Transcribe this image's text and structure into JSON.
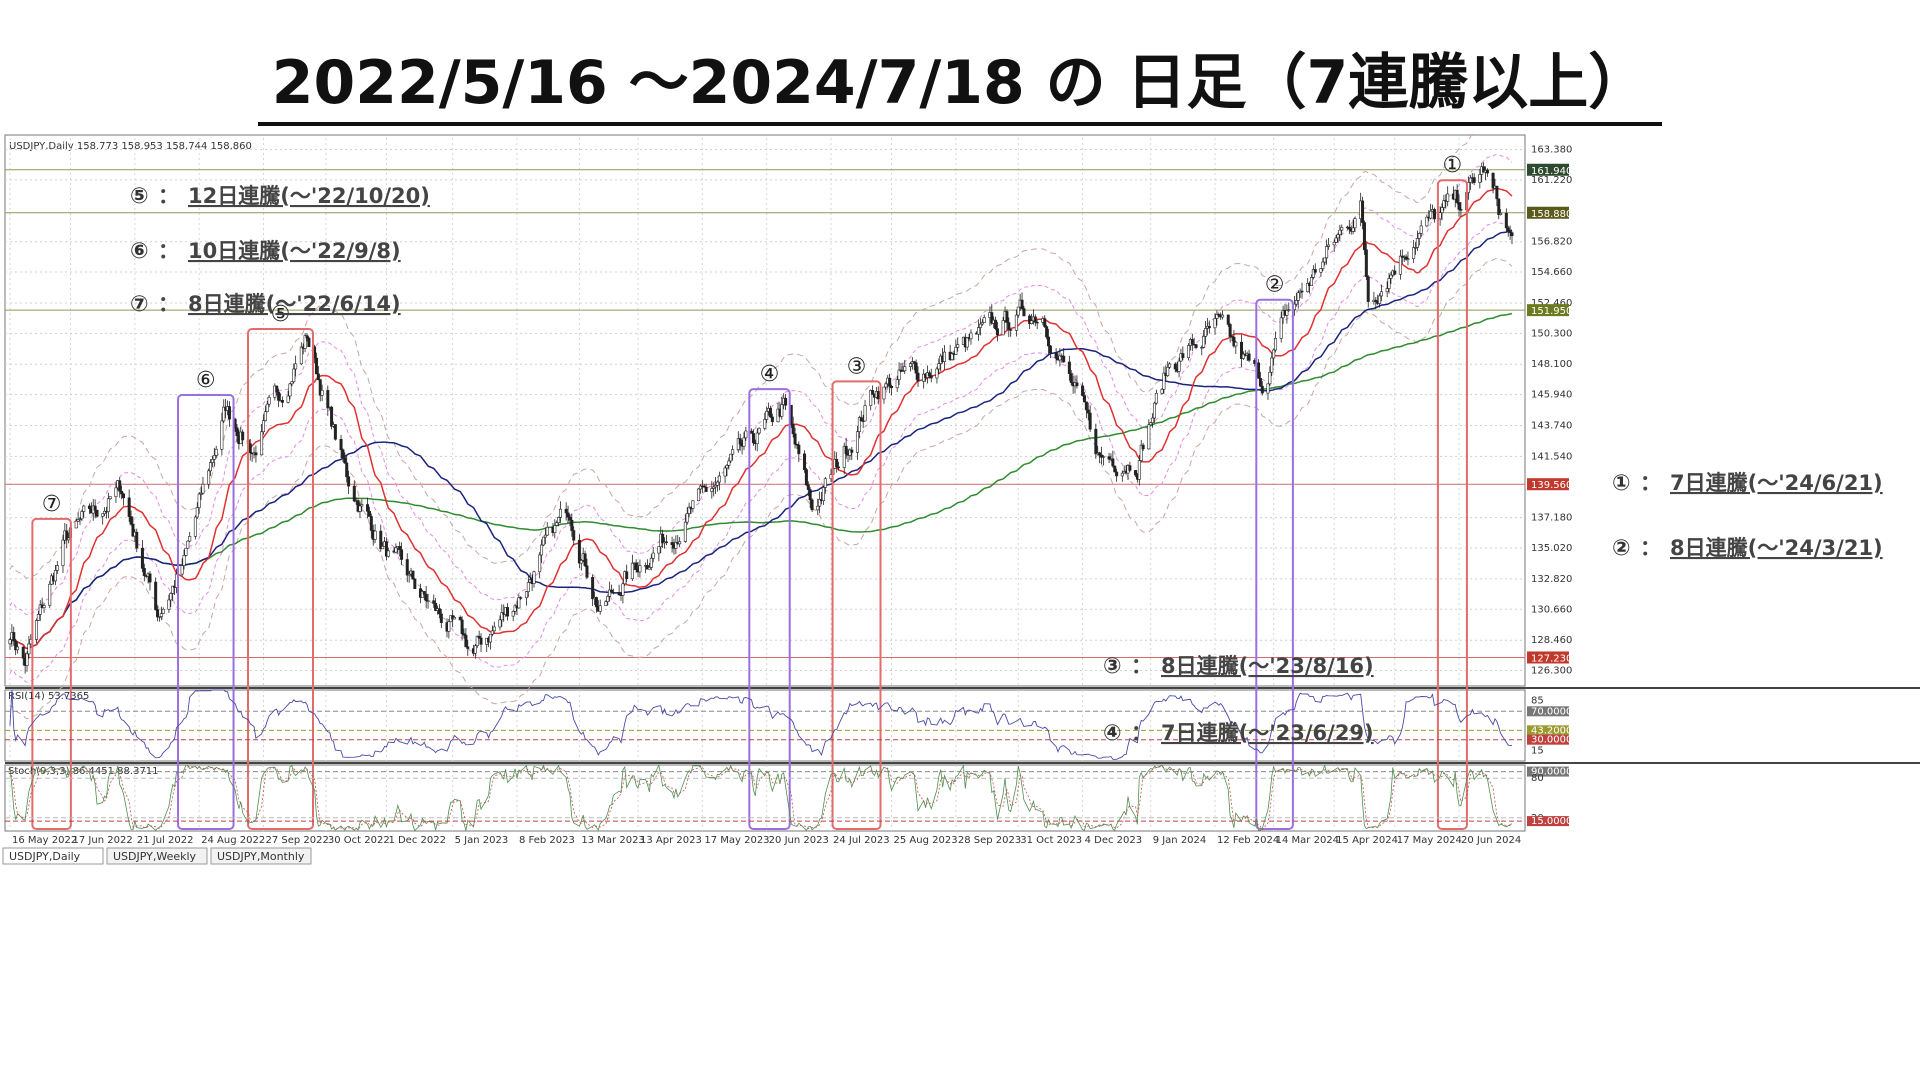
{
  "title": "2022/5/16 ～2024/7/18 の 日足（7連騰以上）",
  "chart_data": {
    "type": "candlestick",
    "symbol_header": "USDJPY,Daily  158.773 158.953 158.744 158.860",
    "ylim": [
      125.2,
      164.2
    ],
    "y_ticks": [
      "163.380",
      "161.220",
      "156.820",
      "154.660",
      "152.460",
      "150.300",
      "148.100",
      "145.940",
      "143.740",
      "141.540",
      "137.180",
      "135.020",
      "132.820",
      "130.660",
      "128.460",
      "126.300"
    ],
    "price_tags": [
      {
        "label": "161.940",
        "value": 161.94,
        "color": "#2e4a2e"
      },
      {
        "label": "158.880",
        "value": 158.88,
        "color": "#5a5a1a"
      },
      {
        "label": "151.950",
        "value": 151.95,
        "color": "#6b7a1f"
      },
      {
        "label": "139.560",
        "value": 139.56,
        "color": "#c0392b"
      },
      {
        "label": "127.230",
        "value": 127.23,
        "color": "#c0392b"
      }
    ],
    "x_ticks": [
      "16 May 2022",
      "17 Jun 2022",
      "21 Jul 2022",
      "24 Aug 2022",
      "27 Sep 2022",
      "30 Oct 2022",
      "1 Dec 2022",
      "5 Jan 2023",
      "8 Feb 2023",
      "13 Mar 2023",
      "13 Apr 2023",
      "17 May 2023",
      "20 Jun 2023",
      "24 Jul 2023",
      "25 Aug 2023",
      "28 Sep 2023",
      "31 Oct 2023",
      "4 Dec 2023",
      "9 Jan 2024",
      "12 Feb 2024",
      "14 Mar 2024",
      "15 Apr 2024",
      "17 May 2024",
      "20 Jun 2024"
    ],
    "price_path": [
      [
        "16 May 2022",
        129.2
      ],
      [
        "2022-05-24",
        126.9
      ],
      [
        "2022-06-14",
        135.4
      ],
      [
        "2022-06-22",
        136.5
      ],
      [
        "2022-07-14",
        139.2
      ],
      [
        "2022-08-02",
        130.4
      ],
      [
        "2022-08-16",
        133.9
      ],
      [
        "2022-09-07",
        144.9
      ],
      [
        "2022-09-22",
        142.0
      ],
      [
        "2022-10-20",
        150.1
      ],
      [
        "2022-11-10",
        140.0
      ],
      [
        "2022-12-02",
        134.5
      ],
      [
        "2022-12-20",
        131.5
      ],
      [
        "2023-01-16",
        127.5
      ],
      [
        "2023-02-08",
        131.4
      ],
      [
        "2023-03-08",
        137.9
      ],
      [
        "2023-03-24",
        130.6
      ],
      [
        "2023-04-13",
        133.9
      ],
      [
        "2023-05-18",
        138.5
      ],
      [
        "2023-06-29",
        145.0
      ],
      [
        "2023-07-14",
        137.7
      ],
      [
        "2023-07-28",
        141.0
      ],
      [
        "2023-08-16",
        146.4
      ],
      [
        "2023-09-15",
        147.9
      ],
      [
        "2023-10-31",
        151.6
      ],
      [
        "2023-11-13",
        151.9
      ],
      [
        "2023-12-13",
        141.4
      ],
      [
        "2024-01-02",
        141.5
      ],
      [
        "2024-01-19",
        148.1
      ],
      [
        "2024-02-13",
        150.6
      ],
      [
        "2024-03-08",
        146.7
      ],
      [
        "2024-03-21",
        151.6
      ],
      [
        "2024-04-29",
        159.5
      ],
      [
        "2024-05-03",
        152.8
      ],
      [
        "2024-05-29",
        157.6
      ],
      [
        "2024-06-21",
        159.7
      ],
      [
        "2024-07-03",
        161.9
      ],
      [
        "2024-07-18",
        156.7
      ]
    ],
    "horizontal_lines": [
      161.94,
      158.88,
      151.95,
      139.56,
      127.23
    ],
    "indicators": {
      "rsi_header": "RSI(14) 53.7365",
      "rsi_levels": [
        "85",
        "70.0000",
        "43.2000",
        "30.0000",
        "15"
      ],
      "stoch_header": "Stoch(9,3,3) 86.4451 88.3711",
      "stoch_levels": [
        "90.0000",
        "80",
        "20",
        "15.0000"
      ]
    },
    "series": [
      {
        "name": "",
        "color": "#e03030"
      },
      {
        "name": "",
        "color": "#1a237e"
      },
      {
        "name": "",
        "color": "#2e8b2e"
      }
    ]
  },
  "streaks": [
    {
      "badge": "①",
      "text": "7日連騰(～'24/6/21)",
      "start": "2024-06-12",
      "end": "2024-06-21"
    },
    {
      "badge": "②",
      "text": "8日連騰(～'24/3/21)",
      "start": "2024-03-08",
      "end": "2024-03-21"
    },
    {
      "badge": "③",
      "text": "8日連騰(～'23/8/16)",
      "start": "2023-07-28",
      "end": "2023-08-16"
    },
    {
      "badge": "④",
      "text": "7日連騰(～'23/6/29)",
      "start": "2023-06-14",
      "end": "2023-06-29"
    },
    {
      "badge": "⑤",
      "text": "12日連騰(～'22/10/20)",
      "start": "2022-09-22",
      "end": "2022-10-20"
    },
    {
      "badge": "⑥",
      "text": "10日連騰(～'22/9/8)",
      "start": "2022-08-16",
      "end": "2022-09-08"
    },
    {
      "badge": "⑦",
      "text": "8日連騰(～'22/6/14)",
      "start": "2022-05-31",
      "end": "2022-06-14"
    }
  ],
  "tabs": [
    "USDJPY,Daily",
    "USDJPY,Weekly",
    "USDJPY,Monthly"
  ]
}
